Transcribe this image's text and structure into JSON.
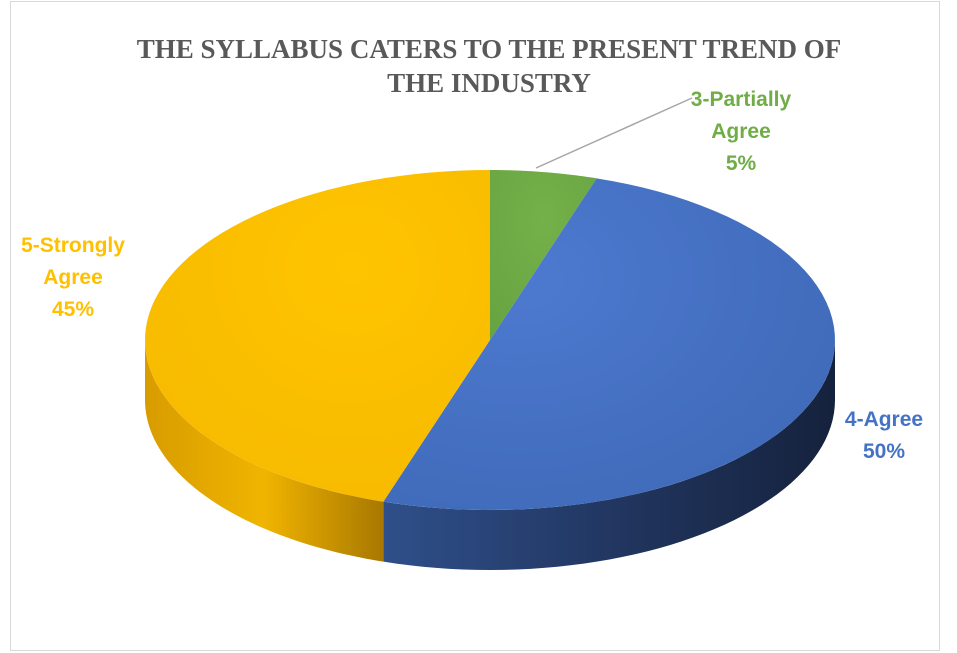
{
  "chart_data": {
    "type": "pie",
    "title_lines": [
      "THE SYLLABUS CATERS TO THE PRESENT TREND OF",
      "THE INDUSTRY"
    ],
    "slices": [
      {
        "name": "3-Partially Agree",
        "label_lines": [
          "3-Partially",
          "Agree"
        ],
        "value": 5,
        "pct_label": "5%",
        "color": "#70ad47",
        "dark": "#4e7a30"
      },
      {
        "name": "4-Agree",
        "label_lines": [
          "4-Agree"
        ],
        "value": 50,
        "pct_label": "50%",
        "color": "#4472c4",
        "dark": "#1f3259"
      },
      {
        "name": "5-Strongly Agree",
        "label_lines": [
          "5-Strongly",
          "Agree"
        ],
        "value": 45,
        "pct_label": "45%",
        "color": "#ffc000",
        "dark": "#b98400"
      }
    ],
    "style": "3d-pie"
  }
}
